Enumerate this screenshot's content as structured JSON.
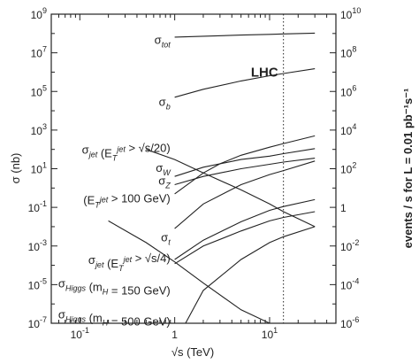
{
  "chart_data": {
    "type": "line",
    "xlabel": "√s (TeV)",
    "ylabel": "σ (nb)",
    "y2label": "events / s for L = 0.01 pb⁻¹s⁻¹",
    "x_scale": "log",
    "y_scale": "log",
    "xlim": [
      0.05,
      50
    ],
    "ylim": [
      1e-07,
      1000000000.0
    ],
    "y2lim": [
      1e-06,
      10000000000.0
    ],
    "x_ticks": [
      {
        "value": 0.1,
        "label": "10",
        "exp": "-1"
      },
      {
        "value": 1,
        "label": "1",
        "exp": ""
      },
      {
        "value": 10,
        "label": "10",
        "exp": "1"
      }
    ],
    "y_ticks": [
      {
        "value": 1000000000.0,
        "label": "10",
        "exp": "9"
      },
      {
        "value": 10000000.0,
        "label": "10",
        "exp": "7"
      },
      {
        "value": 100000.0,
        "label": "10",
        "exp": "5"
      },
      {
        "value": 1000.0,
        "label": "10",
        "exp": "3"
      },
      {
        "value": 10.0,
        "label": "10",
        "exp": "1"
      },
      {
        "value": 0.1,
        "label": "10",
        "exp": "-1"
      },
      {
        "value": 0.001,
        "label": "10",
        "exp": "-3"
      },
      {
        "value": 1e-05,
        "label": "10",
        "exp": "-5"
      },
      {
        "value": 1e-07,
        "label": "10",
        "exp": "-7"
      }
    ],
    "y2_ticks": [
      {
        "value": 10000000000.0,
        "label": "10",
        "exp": "10"
      },
      {
        "value": 100000000.0,
        "label": "10",
        "exp": "8"
      },
      {
        "value": 1000000.0,
        "label": "10",
        "exp": "6"
      },
      {
        "value": 10000.0,
        "label": "10",
        "exp": "4"
      },
      {
        "value": 100.0,
        "label": "10",
        "exp": "2"
      },
      {
        "value": 1,
        "label": "1",
        "exp": ""
      },
      {
        "value": 0.01,
        "label": "10",
        "exp": "-2"
      },
      {
        "value": 0.0001,
        "label": "10",
        "exp": "-4"
      },
      {
        "value": 1e-06,
        "label": "10",
        "exp": "-6"
      }
    ],
    "vline": {
      "x": 14,
      "label": "LHC"
    },
    "series": [
      {
        "x": [
          1.0,
          2,
          5,
          10,
          14,
          30
        ],
        "y": [
          65000000.0,
          72000000.0,
          83000000.0,
          90000000.0,
          95000000.0,
          105000000.0
        ]
      },
      {
        "x": [
          1.0,
          2,
          5,
          10,
          14,
          30
        ],
        "y": [
          50000.0,
          130000.0,
          350000.0,
          650000.0,
          850000.0,
          1500000.0
        ]
      },
      {
        "x": [
          1.0,
          2,
          3,
          5,
          10,
          14,
          30
        ],
        "y": [
          0.5,
          6,
          18,
          50,
          130,
          200,
          500
        ]
      },
      {
        "x": [
          0.5,
          1,
          2,
          5,
          10,
          14,
          30
        ],
        "y": [
          100,
          30,
          6,
          0.8,
          0.15,
          0.06,
          0.01
        ]
      },
      {
        "x": [
          1.0,
          2,
          5,
          10,
          14,
          30
        ],
        "y": [
          4,
          12,
          30,
          45,
          60,
          110
        ]
      },
      {
        "x": [
          1.0,
          2,
          5,
          10,
          14,
          30
        ],
        "y": [
          1.5,
          4,
          10,
          17,
          22,
          35
        ]
      },
      {
        "x": [
          1.0,
          2,
          5,
          10,
          14,
          30
        ],
        "y": [
          0.008,
          0.15,
          1.5,
          5,
          8,
          25
        ]
      },
      {
        "x": [
          1.0,
          2,
          5,
          10,
          14,
          30
        ],
        "y": [
          0.0002,
          0.002,
          0.018,
          0.07,
          0.11,
          0.25
        ]
      },
      {
        "x": [
          1.0,
          2,
          5,
          10,
          14,
          30
        ],
        "y": [
          0.00012,
          0.001,
          0.006,
          0.02,
          0.03,
          0.06
        ]
      },
      {
        "x": [
          0.2,
          0.5,
          1,
          2,
          5,
          10,
          30
        ],
        "y": [
          0.02,
          0.0015,
          0.00015,
          1.2e-05,
          5e-07,
          8e-08,
          1e-08
        ]
      },
      {
        "x": [
          1.3,
          2,
          5,
          10,
          14,
          30
        ],
        "y": [
          1e-07,
          5e-06,
          0.0002,
          0.0015,
          0.003,
          0.01
        ]
      }
    ],
    "annotations": [
      {
        "id": "tot",
        "x": 0.9,
        "y": 50000000.0,
        "text": "σ",
        "sub": "tot"
      },
      {
        "id": "b",
        "x": 0.9,
        "y": 30000.0,
        "text": "σ",
        "sub": "b"
      },
      {
        "id": "jet20",
        "x": 0.9,
        "y": 100,
        "text": "σ",
        "sub": "jet",
        "rest": " (E",
        "sub2": "T",
        "sup2": "jet",
        "tail": " > √s/20)"
      },
      {
        "id": "w",
        "x": 0.9,
        "y": 12,
        "text": "σ",
        "sub": "W"
      },
      {
        "id": "z",
        "x": 0.9,
        "y": 2.5,
        "text": "σ",
        "sub": "Z"
      },
      {
        "id": "et100",
        "x": 0.9,
        "y": 0.25,
        "text": "(E",
        "sub": "T",
        "sup": "jet",
        "tail": " > 100 GeV)"
      },
      {
        "id": "t",
        "x": 0.9,
        "y": 0.003,
        "text": "σ",
        "sub": "t"
      },
      {
        "id": "jet4",
        "x": 0.9,
        "y": 0.0002,
        "text": "σ",
        "sub": "jet",
        "rest": " (E",
        "sub2": "T",
        "sup2": "jet",
        "tail": " > √s/4)"
      },
      {
        "id": "h150",
        "x": 0.9,
        "y": 1.2e-05,
        "text": "σ",
        "sub": "Higgs",
        "tail": " (m",
        "sub3": "H",
        "tail2": " = 150 GeV)"
      },
      {
        "id": "h500",
        "x": 0.9,
        "y": 3e-07,
        "text": "σ",
        "sub": "Higgs",
        "tail": " (m",
        "sub3": "H",
        "tail2": " = 500 GeV)"
      }
    ]
  }
}
